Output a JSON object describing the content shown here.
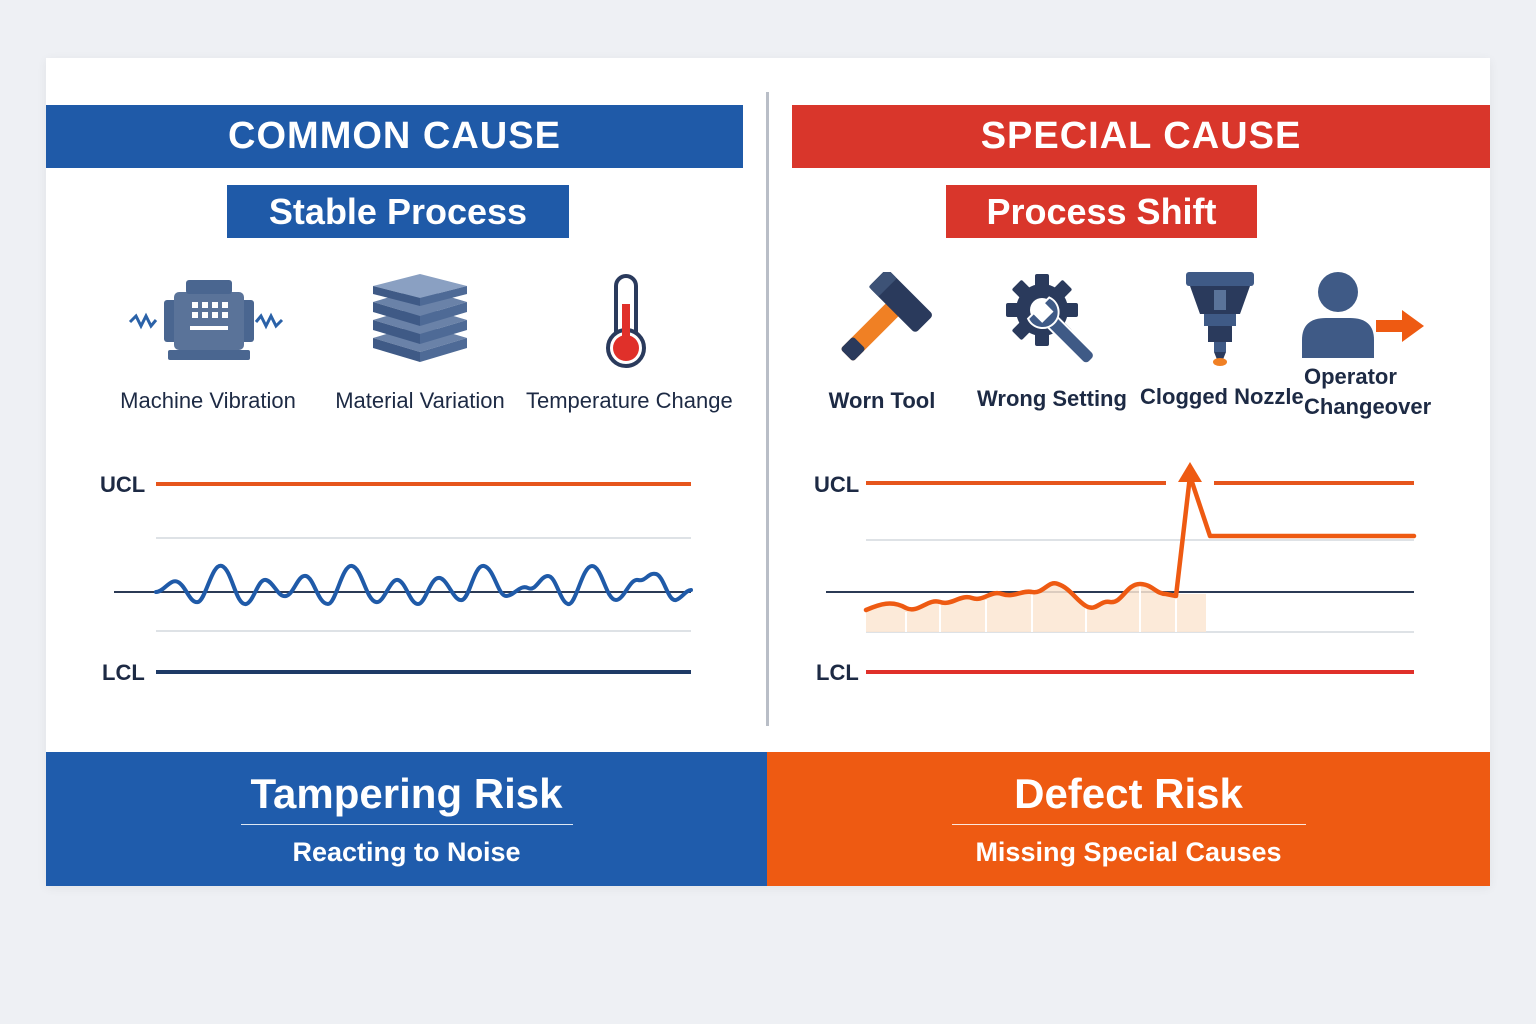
{
  "common": {
    "title": "COMMON CAUSE",
    "subtitle": "Stable Process",
    "icons": [
      {
        "label": "Machine Vibration",
        "icon": "machine-vibration-icon"
      },
      {
        "label": "Material Variation",
        "icon": "material-stack-icon"
      },
      {
        "label": "Temperature Change",
        "icon": "thermometer-icon"
      }
    ],
    "chart": {
      "ucl": "UCL",
      "lcl": "LCL"
    },
    "footer": {
      "title": "Tampering Risk",
      "subtitle": "Reacting to Noise"
    }
  },
  "special": {
    "title": "SPECIAL CAUSE",
    "subtitle": "Process Shift",
    "icons": [
      {
        "label": "Worn Tool",
        "icon": "hammer-icon"
      },
      {
        "label": "Wrong Setting",
        "icon": "gear-wrench-icon"
      },
      {
        "label": "Clogged Nozzle",
        "icon": "nozzle-icon"
      },
      {
        "label_line1": "Operator",
        "label_line2": "Changeover",
        "icon": "operator-arrow-icon"
      }
    ],
    "chart": {
      "ucl": "UCL",
      "lcl": "LCL"
    },
    "footer": {
      "title": "Defect Risk",
      "subtitle": "Missing Special Causes"
    }
  },
  "colors": {
    "blue": "#1f5aa8",
    "red": "#d9362b",
    "orange": "#ee5a12",
    "navy": "#1d3a66"
  }
}
